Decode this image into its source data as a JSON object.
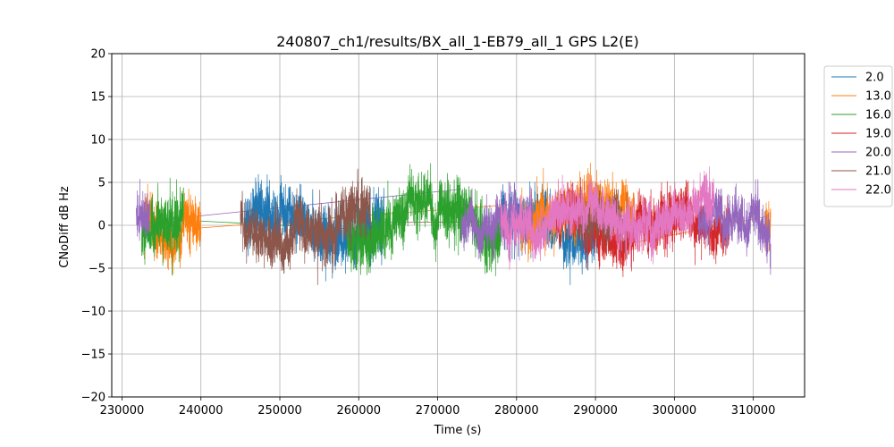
{
  "chart_data": {
    "type": "line",
    "title": "240807_ch1/results/BX_all_1-EB79_all_1 GPS L2(E)",
    "xlabel": "Time (s)",
    "ylabel": "CNoDiff dB Hz",
    "xlim": [
      228700,
      316500
    ],
    "ylim": [
      -20,
      20
    ],
    "xticks": [
      230000,
      240000,
      250000,
      260000,
      270000,
      280000,
      290000,
      300000,
      310000
    ],
    "yticks": [
      -20,
      -15,
      -10,
      -5,
      0,
      5,
      10,
      15,
      20
    ],
    "grid": true,
    "legend_position": "outside-right-top",
    "series": [
      {
        "name": "2.0",
        "color": "#1f77b4",
        "segments": [
          [
            245500,
            263200
          ],
          [
            278000,
            290500
          ]
        ],
        "amplitude": 2.2,
        "offset": 0.2
      },
      {
        "name": "13.0",
        "color": "#ff7f0e",
        "segments": [
          [
            232500,
            240000
          ],
          [
            280500,
            295000
          ],
          [
            311500,
            312200
          ]
        ],
        "amplitude": 2.0,
        "offset": 0.5
      },
      {
        "name": "16.0",
        "color": "#2ca02c",
        "segments": [
          [
            232500,
            237800
          ],
          [
            258500,
            278000
          ]
        ],
        "amplitude": 2.2,
        "offset": 0.0
      },
      {
        "name": "19.0",
        "color": "#d62728",
        "segments": [
          [
            285000,
            307000
          ]
        ],
        "amplitude": 2.0,
        "offset": -0.5
      },
      {
        "name": "20.0",
        "color": "#9467bd",
        "segments": [
          [
            231800,
            233500
          ],
          [
            273000,
            282000
          ],
          [
            303000,
            312200
          ]
        ],
        "amplitude": 1.8,
        "offset": 0.0
      },
      {
        "name": "21.0",
        "color": "#8c564b",
        "segments": [
          [
            245000,
            261500
          ],
          [
            288000,
            294000
          ]
        ],
        "amplitude": 2.0,
        "offset": -0.3
      },
      {
        "name": "22.0",
        "color": "#e377c2",
        "segments": [
          [
            278000,
            305000
          ]
        ],
        "amplitude": 1.8,
        "offset": 0.6
      }
    ],
    "gap_links": [
      {
        "series": "20.0",
        "from": [
          233500,
          0.5
        ],
        "to": [
          273000,
          4.2
        ]
      },
      {
        "series": "13.0",
        "from": [
          240000,
          -0.3
        ],
        "to": [
          280500,
          2.5
        ]
      },
      {
        "series": "16.0",
        "from": [
          237800,
          0.6
        ],
        "to": [
          258500,
          -0.4
        ]
      },
      {
        "series": "13.0",
        "from": [
          295000,
          -2.0
        ],
        "to": [
          311500,
          1.0
        ]
      },
      {
        "series": "21.0",
        "from": [
          261500,
          0.3
        ],
        "to": [
          288000,
          0.5
        ]
      }
    ]
  }
}
